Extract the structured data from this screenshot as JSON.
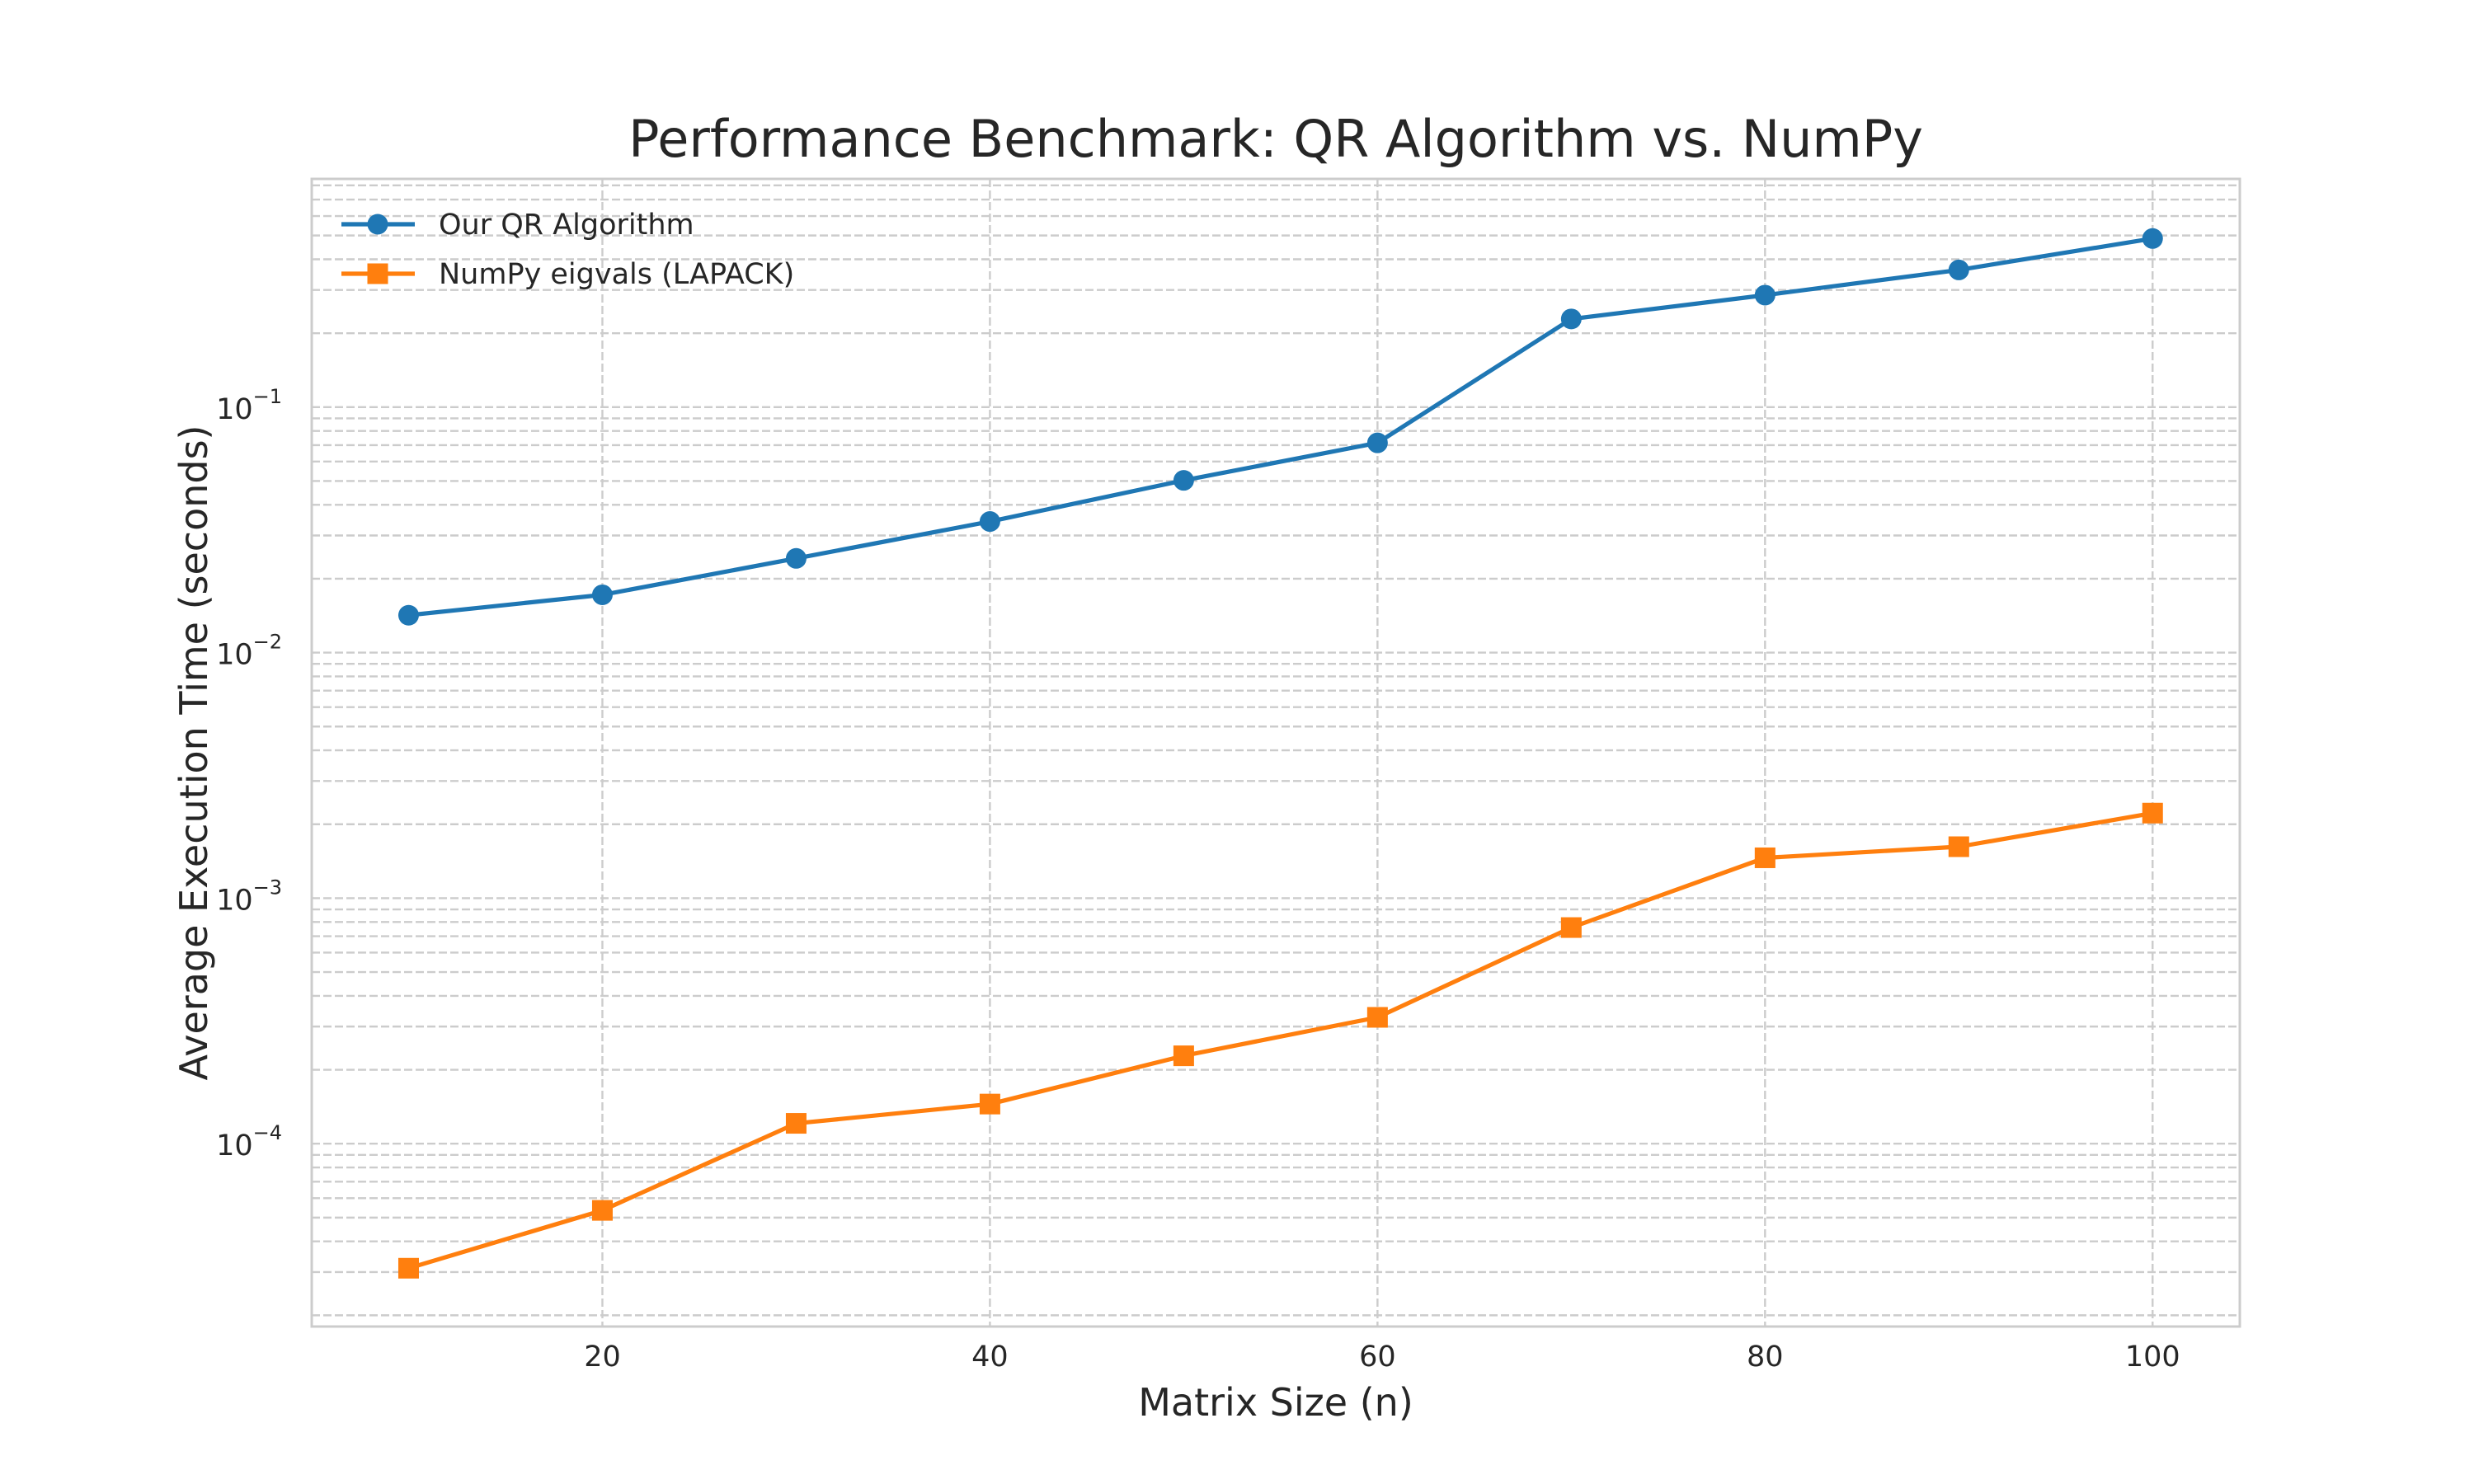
{
  "chart_data": {
    "type": "line",
    "title": "Performance Benchmark: QR Algorithm vs. NumPy",
    "xlabel": "Matrix Size (n)",
    "ylabel": "Average Execution Time (seconds)",
    "x": [
      10,
      20,
      30,
      40,
      50,
      60,
      70,
      80,
      90,
      100
    ],
    "xlim": [
      5,
      104.5
    ],
    "ylim": [
      1.8e-05,
      0.85
    ],
    "yscale": "log",
    "x_ticks": [
      {
        "value": 20,
        "label": "20"
      },
      {
        "value": 40,
        "label": "40"
      },
      {
        "value": 60,
        "label": "60"
      },
      {
        "value": 80,
        "label": "80"
      },
      {
        "value": 100,
        "label": "100"
      }
    ],
    "y_ticks": [
      {
        "value": 0.0001,
        "base": "10",
        "exp": "−4"
      },
      {
        "value": 0.001,
        "base": "10",
        "exp": "−3"
      },
      {
        "value": 0.01,
        "base": "10",
        "exp": "−2"
      },
      {
        "value": 0.1,
        "base": "10",
        "exp": "−1"
      }
    ],
    "grid": true,
    "legend_position": "top-left",
    "series": [
      {
        "name": "Our QR Algorithm",
        "color": "#1f77b4",
        "marker": "circle",
        "values": [
          0.0142,
          0.0172,
          0.0242,
          0.0342,
          0.0503,
          0.0715,
          0.2286,
          0.2858,
          0.3619,
          0.486
        ]
      },
      {
        "name": "NumPy eigvals (LAPACK)",
        "color": "#ff7f0e",
        "marker": "square",
        "values": [
          3.11e-05,
          5.35e-05,
          0.000121,
          0.000145,
          0.000228,
          0.000327,
          0.000759,
          0.00146,
          0.00162,
          0.00222
        ]
      }
    ]
  }
}
